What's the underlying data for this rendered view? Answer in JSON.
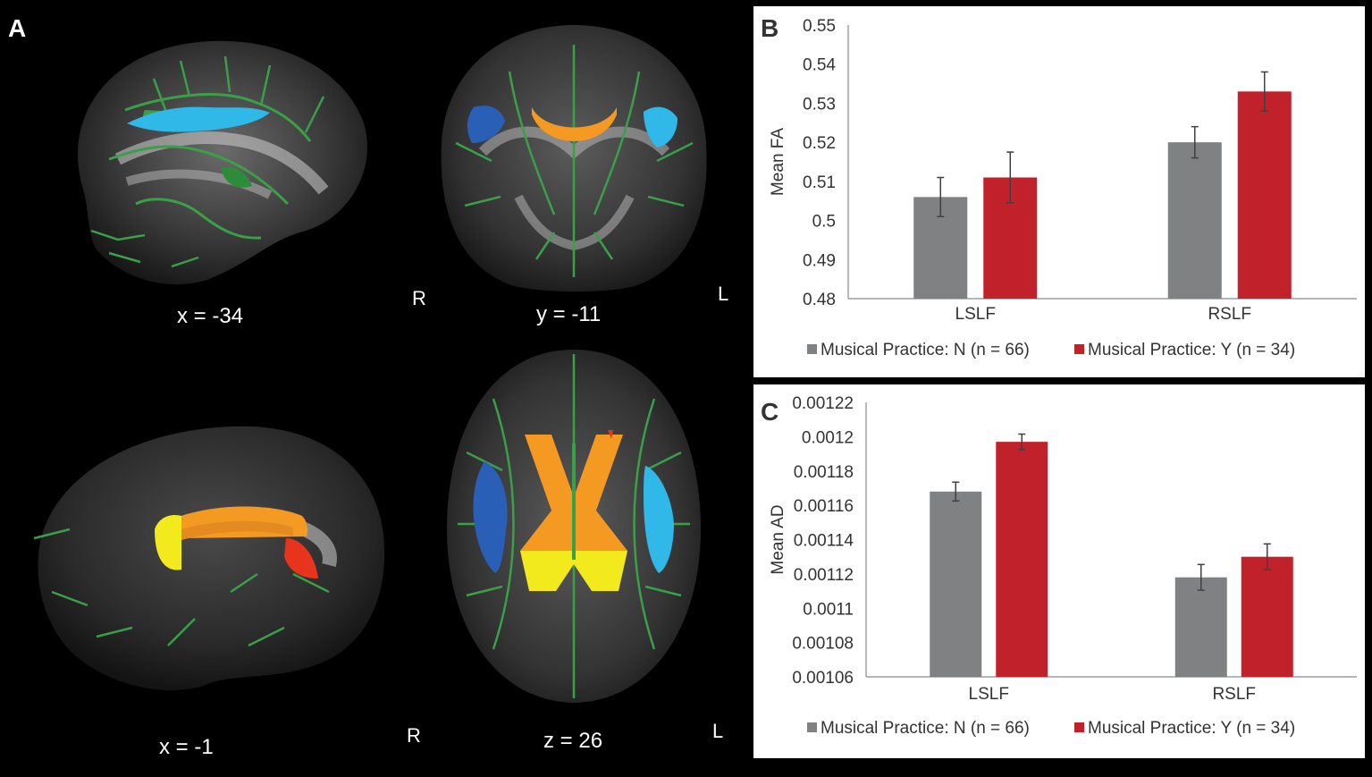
{
  "panel_a": {
    "letter": "A",
    "views": [
      {
        "label": "x = -34"
      },
      {
        "label": "y = -11",
        "left_label": "R",
        "right_label": "L"
      },
      {
        "label": "x = -1"
      },
      {
        "label": "z = 26",
        "left_label": "R",
        "right_label": "L"
      }
    ]
  },
  "colors": {
    "group_n": "#7f8183",
    "group_y": "#c0212a",
    "error_bar": "#404040",
    "tract_green": "#3aa048",
    "light_blue": "#2fb8e8",
    "dark_blue": "#2a5fb8",
    "orange": "#f49a22",
    "yellow": "#f2ea1c",
    "red": "#e8341c"
  },
  "chart_data": [
    {
      "panel_letter": "B",
      "type": "bar",
      "ylabel": "Mean FA",
      "xlabel": "",
      "categories": [
        "LSLF",
        "RSLF"
      ],
      "ylim": [
        0.48,
        0.55
      ],
      "yticks": [
        "0.48",
        "0.49",
        "0.5",
        "0.51",
        "0.52",
        "0.53",
        "0.54",
        "0.55"
      ],
      "ytick_values": [
        0.48,
        0.49,
        0.5,
        0.51,
        0.52,
        0.53,
        0.54,
        0.55
      ],
      "series": [
        {
          "name": "Musical Practice: N (n = 66)",
          "values": [
            0.506,
            0.52
          ],
          "errors": [
            0.005,
            0.004
          ]
        },
        {
          "name": "Musical Practice: Y (n = 34)",
          "values": [
            0.511,
            0.533
          ],
          "errors": [
            0.0065,
            0.005
          ]
        }
      ],
      "legend_position": "bottom",
      "grid": false
    },
    {
      "panel_letter": "C",
      "type": "bar",
      "ylabel": "Mean AD",
      "xlabel": "",
      "categories": [
        "LSLF",
        "RSLF"
      ],
      "ylim": [
        0.00106,
        0.00122
      ],
      "yticks": [
        "0.00106",
        "0.00108",
        "0.0011",
        "0.00112",
        "0.00114",
        "0.00116",
        "0.00118",
        "0.0012",
        "0.00122"
      ],
      "ytick_values": [
        0.00106,
        0.00108,
        0.0011,
        0.00112,
        0.00114,
        0.00116,
        0.00118,
        0.0012,
        0.00122
      ],
      "series": [
        {
          "name": "Musical Practice: N (n = 66)",
          "values": [
            0.001168,
            0.001118
          ],
          "errors": [
            5.5e-06,
            7.5e-06
          ]
        },
        {
          "name": "Musical Practice: Y (n = 34)",
          "values": [
            0.001197,
            0.00113
          ],
          "errors": [
            4.5e-06,
            7.5e-06
          ]
        }
      ],
      "legend_position": "bottom",
      "grid": false
    }
  ]
}
